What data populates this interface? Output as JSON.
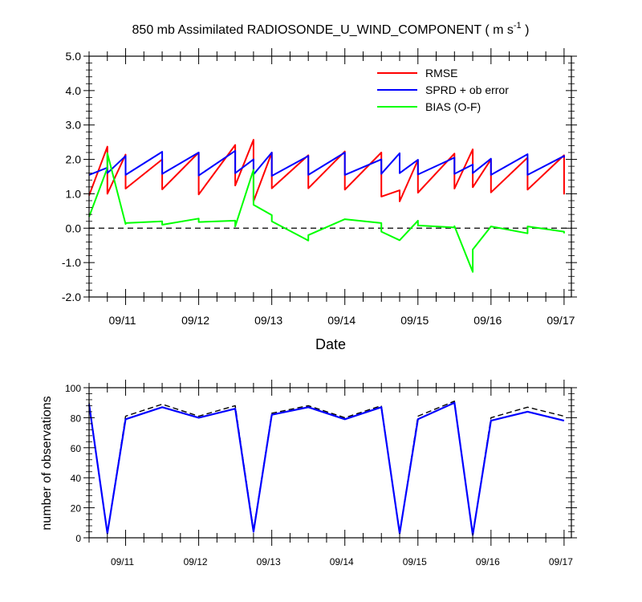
{
  "chart_data": [
    {
      "type": "line",
      "title_main": "850 mb Assimilated RADIOSONDE_U_WIND_COMPONENT ( m s",
      "title_sup": "-1",
      "title_end": " )",
      "xlabel": "Date",
      "ylabel": "",
      "xlim": [
        0,
        6.6
      ],
      "ylim": [
        -2.0,
        5.0
      ],
      "yticks": [
        -2.0,
        -1.0,
        0.0,
        1.0,
        2.0,
        3.0,
        4.0,
        5.0
      ],
      "ytick_labels": [
        "-2.0",
        "-1.0",
        "0.0",
        "1.0",
        "2.0",
        "3.0",
        "4.0",
        "5.0"
      ],
      "xticks": [
        0.5,
        1.5,
        2.5,
        3.5,
        4.5,
        5.5,
        6.5
      ],
      "xtick_labels": [
        "09/11",
        "09/12",
        "09/13",
        "09/14",
        "09/15",
        "09/16",
        "09/17"
      ],
      "zero_line": 0.0,
      "legend": [
        "RMSE",
        "SPRD + ob error",
        "BIAS (O-F)"
      ],
      "series": [
        {
          "name": "RMSE",
          "color": "#ff0000",
          "x": [
            0.0,
            0.25,
            0.25,
            0.5,
            0.5,
            1.0,
            1.0,
            1.5,
            1.5,
            2.0,
            2.0,
            2.25,
            2.25,
            2.5,
            2.5,
            3.0,
            3.0,
            3.5,
            3.5,
            4.0,
            4.0,
            4.25,
            4.25,
            4.5,
            4.5,
            5.0,
            5.0,
            5.25,
            5.25,
            5.5,
            5.5,
            6.0,
            6.0,
            6.5,
            6.5
          ],
          "values": [
            0.95,
            2.37,
            1.0,
            2.14,
            1.15,
            2.0,
            1.13,
            2.2,
            0.98,
            2.42,
            1.24,
            2.57,
            0.78,
            2.2,
            1.16,
            2.12,
            1.16,
            2.23,
            1.12,
            2.2,
            0.92,
            1.1,
            0.78,
            1.98,
            1.03,
            2.17,
            1.15,
            2.29,
            1.19,
            2.0,
            1.04,
            2.05,
            1.12,
            2.12,
            0.98
          ]
        },
        {
          "name": "SPRD + ob error",
          "color": "#0000ff",
          "x": [
            0.0,
            0.25,
            0.25,
            0.5,
            0.5,
            1.0,
            1.0,
            1.5,
            1.5,
            2.0,
            2.0,
            2.25,
            2.25,
            2.5,
            2.5,
            3.0,
            3.0,
            3.5,
            3.5,
            4.0,
            4.0,
            4.25,
            4.25,
            4.5,
            4.5,
            5.0,
            5.0,
            5.25,
            5.25,
            5.5,
            5.5,
            6.0,
            6.0,
            6.5,
            6.5
          ],
          "values": [
            1.55,
            1.76,
            1.6,
            2.1,
            1.55,
            2.22,
            1.58,
            2.2,
            1.53,
            2.25,
            1.6,
            2.0,
            1.56,
            2.2,
            1.52,
            2.1,
            1.55,
            2.2,
            1.55,
            2.0,
            1.58,
            2.18,
            1.6,
            1.99,
            1.56,
            2.05,
            1.58,
            1.85,
            1.6,
            2.02,
            1.55,
            2.15,
            1.55,
            2.1,
            2.05
          ]
        },
        {
          "name": "BIAS (O-F)",
          "color": "#00ff00",
          "x": [
            0.0,
            0.25,
            0.25,
            0.5,
            0.5,
            1.0,
            1.0,
            1.5,
            1.5,
            2.0,
            2.0,
            2.25,
            2.25,
            2.5,
            2.5,
            3.0,
            3.0,
            3.5,
            3.5,
            4.0,
            4.0,
            4.25,
            4.25,
            4.5,
            4.5,
            5.0,
            5.0,
            5.25,
            5.25,
            5.5,
            5.5,
            6.0,
            6.0,
            6.5,
            6.5
          ],
          "values": [
            0.33,
            1.75,
            2.18,
            0.12,
            0.15,
            0.2,
            0.1,
            0.28,
            0.18,
            0.22,
            0.05,
            1.7,
            0.68,
            0.38,
            0.2,
            -0.36,
            -0.2,
            0.26,
            0.26,
            0.15,
            -0.1,
            -0.35,
            -0.35,
            0.22,
            0.08,
            0.02,
            0.06,
            -1.27,
            -0.62,
            0.05,
            0.05,
            -0.15,
            0.05,
            -0.1,
            -0.15
          ]
        }
      ]
    },
    {
      "type": "line",
      "ylabel": "number of observations",
      "xlim": [
        0,
        6.6
      ],
      "ylim": [
        0,
        100
      ],
      "yticks": [
        0,
        20,
        40,
        60,
        80,
        100
      ],
      "ytick_labels": [
        "0",
        "20",
        "40",
        "60",
        "80",
        "100"
      ],
      "xticks": [
        0.5,
        1.5,
        2.5,
        3.5,
        4.5,
        5.5,
        6.5
      ],
      "xtick_labels": [
        "09/11",
        "09/12",
        "09/13",
        "09/14",
        "09/15",
        "09/16",
        "09/17"
      ],
      "series": [
        {
          "name": "observations (dashed)",
          "color": "#000000",
          "style": "dashed",
          "x": [
            0.0,
            0.25,
            0.5,
            1.0,
            1.5,
            2.0,
            2.25,
            2.5,
            3.0,
            3.5,
            4.0,
            4.25,
            4.5,
            5.0,
            5.25,
            5.5,
            6.0,
            6.5
          ],
          "values": [
            90,
            3,
            81,
            89,
            81,
            88,
            5,
            83,
            88,
            80,
            88,
            3,
            81,
            91,
            2,
            80,
            87,
            81
          ]
        },
        {
          "name": "observations (solid)",
          "color": "#0000ff",
          "style": "solid",
          "x": [
            0.0,
            0.25,
            0.5,
            1.0,
            1.5,
            2.0,
            2.25,
            2.5,
            3.0,
            3.5,
            4.0,
            4.25,
            4.5,
            5.0,
            5.25,
            5.5,
            6.0,
            6.5
          ],
          "values": [
            89,
            3,
            79,
            87,
            80,
            86,
            4,
            82,
            87,
            79,
            87,
            3,
            79,
            90,
            2,
            78,
            84,
            78
          ]
        }
      ]
    }
  ]
}
